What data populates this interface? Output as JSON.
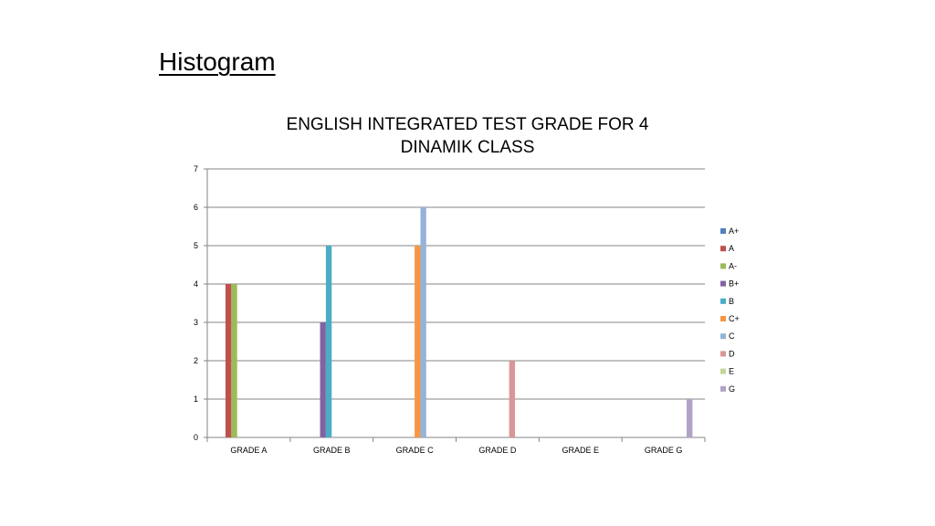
{
  "slide": {
    "heading": "Histogram"
  },
  "chart_data": {
    "type": "bar",
    "title_lines": [
      "ENGLISH INTEGRATED TEST GRADE FOR 4",
      "DINAMIK CLASS"
    ],
    "categories": [
      "GRADE A",
      "GRADE B",
      "GRADE C",
      "GRADE D",
      "GRADE E",
      "GRADE G"
    ],
    "ylim": [
      0,
      7
    ],
    "yticks": [
      0,
      1,
      2,
      3,
      4,
      5,
      6,
      7
    ],
    "grid": true,
    "legend_position": "right",
    "series": [
      {
        "name": "A+",
        "color": "#4F81BD",
        "values": [
          0,
          0,
          0,
          0,
          0,
          0
        ]
      },
      {
        "name": "A",
        "color": "#C0504D",
        "values": [
          4,
          0,
          0,
          0,
          0,
          0
        ]
      },
      {
        "name": "A-",
        "color": "#9BBB59",
        "values": [
          4,
          0,
          0,
          0,
          0,
          0
        ]
      },
      {
        "name": "B+",
        "color": "#8064A2",
        "values": [
          0,
          3,
          0,
          0,
          0,
          0
        ]
      },
      {
        "name": "B",
        "color": "#4BACC6",
        "values": [
          0,
          5,
          0,
          0,
          0,
          0
        ]
      },
      {
        "name": "C+",
        "color": "#F79646",
        "values": [
          0,
          0,
          5,
          0,
          0,
          0
        ]
      },
      {
        "name": "C",
        "color": "#95B3D7",
        "values": [
          0,
          0,
          6,
          0,
          0,
          0
        ]
      },
      {
        "name": "D",
        "color": "#D99694",
        "values": [
          0,
          0,
          0,
          2,
          0,
          0
        ]
      },
      {
        "name": "E",
        "color": "#C3D69B",
        "values": [
          0,
          0,
          0,
          0,
          0,
          0
        ]
      },
      {
        "name": "G",
        "color": "#B2A2C7",
        "values": [
          0,
          0,
          0,
          0,
          0,
          1
        ]
      }
    ]
  }
}
